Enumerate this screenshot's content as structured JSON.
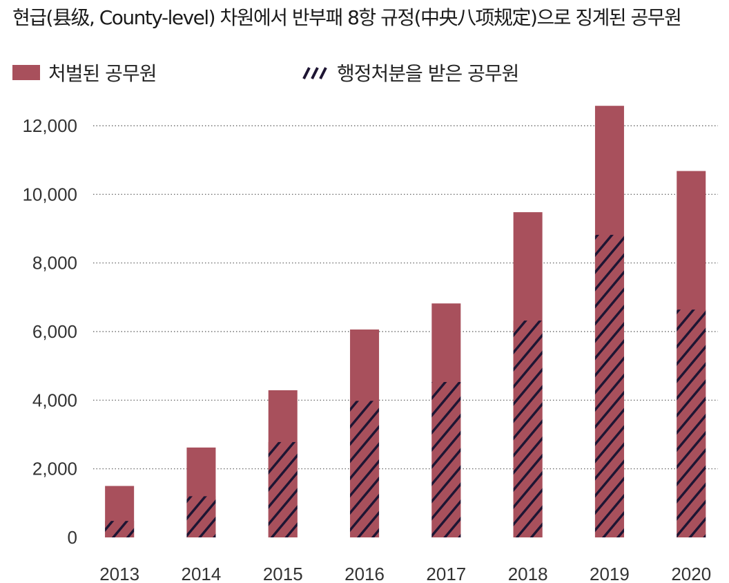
{
  "chart_data": {
    "type": "bar",
    "title": "현급(县级, County-level) 차원에서 반부패 8항 규정(中央八项规定)으로 징계된 공무원",
    "categories": [
      "2013",
      "2014",
      "2015",
      "2016",
      "2017",
      "2018",
      "2019",
      "2020"
    ],
    "series": [
      {
        "name": "처벌된 공무원",
        "values": [
          1500,
          2620,
          4290,
          6060,
          6820,
          9480,
          12580,
          10680
        ],
        "color": "#a8505c",
        "pattern": "solid"
      },
      {
        "name": "행정처분을 받은 공무원",
        "values": [
          480,
          1200,
          2780,
          3980,
          4530,
          6320,
          8820,
          6640
        ],
        "color": "#a8505c",
        "pattern": "diagonal-hatch",
        "hatch_color": "#1e1533"
      }
    ],
    "overlay": "hatched series drawn over the lower part of each solid bar",
    "ylim": [
      0,
      13000
    ],
    "yticks": [
      0,
      2000,
      4000,
      6000,
      8000,
      10000,
      12000
    ],
    "ytick_labels": [
      "0",
      "2,000",
      "4,000",
      "6,000",
      "8,000",
      "10,000",
      "12,000"
    ],
    "xlabel": "",
    "ylabel": "",
    "grid": "horizontal dotted",
    "legend_position": "top-left"
  }
}
